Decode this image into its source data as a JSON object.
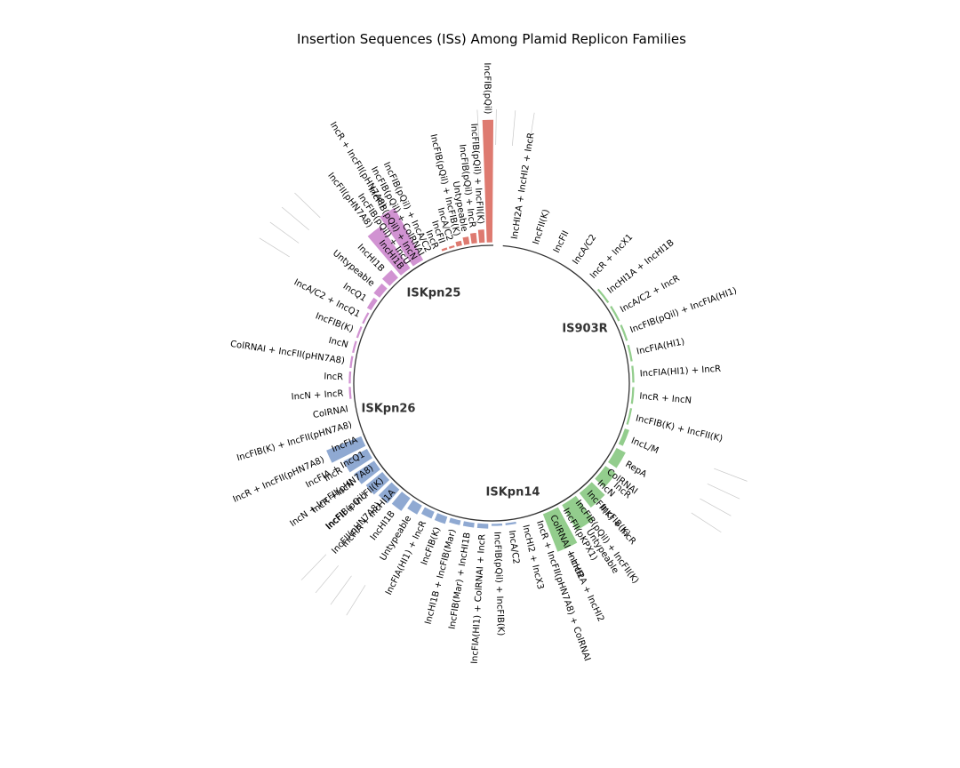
{
  "chart_data": {
    "type": "bar",
    "layout": "circular",
    "title": "Insertion Sequences (ISs) Among Plamid Replicon Families",
    "groups": [
      {
        "name": "IS903R",
        "color": "#93CD8D",
        "categories": [
          "IncHI2A + IncHI2 + IncR",
          "IncFII(K)",
          "IncFII",
          "IncA/C2",
          "IncR + IncX1",
          "IncHI1A + IncHI1B",
          "IncA/C2 + IncR",
          "IncFIB(pQil) + IncFIA(HI1)",
          "IncFIA(HI1)",
          "IncFIA(HI1) + IncR",
          "IncR + IncN",
          "IncFIB(K) + IncFII(K)",
          "IncL/M",
          "RepA",
          "IncR",
          "IncFIB(K)",
          "Untypeable",
          "IncHI2A + IncHI2"
        ],
        "values": [
          0,
          0,
          0,
          0,
          0,
          1,
          1,
          1,
          1,
          1,
          1,
          1,
          2,
          4,
          5,
          7,
          11,
          15
        ]
      },
      {
        "name": "ISKpn14",
        "color": "#8FA9D2",
        "categories": [
          "ColRNAI",
          "IncN",
          "IncFII(K) + IncR",
          "IncFIB(pQil) + IncFII(K)",
          "IncFII(pKPX1)",
          "ColRNAI + IncR",
          "IncR + IncFII(pHN7A8) + ColRNAI",
          "IncHI2 + IncX3",
          "IncA/C2",
          "IncFIB(pQil) + IncFIB(K)",
          "IncFIA(HI1) + ColRNAI + IncR",
          "IncFIB(Mar) + IncHI1B",
          "IncHI1B + IncFIB(Mar)",
          "IncFIB(K)",
          "IncFIA(HI1) + IncR",
          "Untypeable",
          "IncHI1B",
          "IncFII(pHN7A8)",
          "IncFIB(pQil)",
          "IncR +IncN",
          "IncR",
          "IncR + IncFII(pHN7A8)"
        ],
        "values": [
          0,
          0,
          0,
          0,
          0,
          0,
          0,
          0,
          1,
          1,
          2,
          2,
          2,
          3,
          3,
          4,
          6,
          7,
          8,
          9,
          10,
          14
        ]
      },
      {
        "name": "ISKpn26",
        "color": "#D193D2",
        "categories": [
          "IncFIA + IncHI1A",
          "IncFII + IncFII(K)",
          "IncN + IncFII(pHN7A8)",
          "IncFIA + IncQ1",
          "IncFIA",
          "IncFIB(K)  + IncFII(pHN7A8)",
          "ColRNAI",
          "IncN + IncR",
          "IncR",
          "ColRNAI + IncFII(pHN7A8)",
          "IncN",
          "IncFIB(K)",
          "IncA/C2 + IncQ1",
          "IncQ1",
          "Untypeable",
          "IncHI1B",
          "IncFII(pHN7A8)",
          "IncR + IncFII(pHN7A8)"
        ],
        "values": [
          0,
          0,
          0,
          0,
          0,
          0,
          0,
          1,
          1,
          1,
          1,
          1,
          1,
          2,
          3,
          4,
          19,
          22
        ]
      },
      {
        "name": "ISKpn25",
        "color": "#DE7A70",
        "categories": [
          "IncHI1B",
          "IncFIB(pQil) + IncU",
          "IncFIB(pQil) + IncN",
          "IncFIB(pQil) + ColRNAI",
          "IncFIB(pQil) + IncA/C2",
          "IncR",
          "IncFII",
          "IncA/C2",
          "IncFIB(pQil) + IncFIB(K)",
          "Untypeable",
          "IncFIB(pQil) + IncR",
          "IncFIB(pQil) + IncFII(K)",
          "IncFIB(pQil)"
        ],
        "values": [
          0,
          0,
          0,
          0,
          0,
          0,
          1,
          1,
          2,
          3,
          4,
          5,
          45
        ]
      }
    ]
  }
}
